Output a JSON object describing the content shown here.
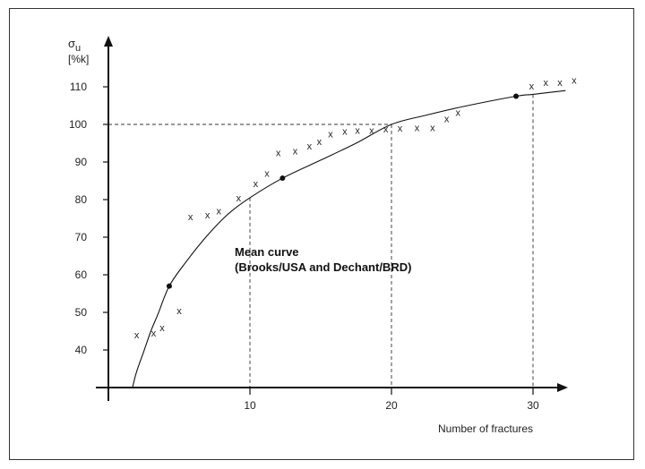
{
  "chart_data": {
    "type": "scatter",
    "ylabel_symbol": "σ",
    "ylabel_subscript": "u",
    "ylabel_unit": "[%k]",
    "xlabel": "Number of fractures",
    "xlim": [
      0,
      32.5
    ],
    "ylim": [
      30,
      120
    ],
    "x_ticks": [
      10,
      20,
      30
    ],
    "y_ticks": [
      40,
      50,
      60,
      70,
      80,
      90,
      100,
      110
    ],
    "grid": false,
    "annotation": {
      "line1": "Mean curve",
      "line2": "(Brooks/USA and Dechant/BRD)"
    },
    "scatter_marker": "x",
    "scatter": [
      {
        "x": 2.0,
        "y": 44
      },
      {
        "x": 3.2,
        "y": 44.5
      },
      {
        "x": 3.8,
        "y": 46
      },
      {
        "x": 5.0,
        "y": 50.5
      },
      {
        "x": 5.8,
        "y": 75.5
      },
      {
        "x": 7.0,
        "y": 76
      },
      {
        "x": 7.8,
        "y": 77
      },
      {
        "x": 9.2,
        "y": 80.5
      },
      {
        "x": 10.4,
        "y": 84.3
      },
      {
        "x": 11.2,
        "y": 87
      },
      {
        "x": 12.0,
        "y": 92.5
      },
      {
        "x": 13.2,
        "y": 93
      },
      {
        "x": 14.2,
        "y": 94.3
      },
      {
        "x": 14.9,
        "y": 95.5
      },
      {
        "x": 15.7,
        "y": 97.5
      },
      {
        "x": 16.7,
        "y": 98.2
      },
      {
        "x": 17.6,
        "y": 98.5
      },
      {
        "x": 18.6,
        "y": 98.5
      },
      {
        "x": 19.6,
        "y": 98.8
      },
      {
        "x": 20.6,
        "y": 99
      },
      {
        "x": 21.8,
        "y": 99.2
      },
      {
        "x": 22.9,
        "y": 99.2
      },
      {
        "x": 23.9,
        "y": 101.5
      },
      {
        "x": 24.7,
        "y": 103.2
      },
      {
        "x": 29.9,
        "y": 110.2
      },
      {
        "x": 30.9,
        "y": 111.2
      },
      {
        "x": 31.9,
        "y": 111.2
      },
      {
        "x": 32.9,
        "y": 111.8
      }
    ],
    "curve_marker_points": [
      {
        "x": 4.3,
        "y": 57
      },
      {
        "x": 12.3,
        "y": 85.7
      },
      {
        "x": 28.8,
        "y": 107.5
      }
    ],
    "mean_curve": [
      {
        "x": 1.7,
        "y": 30
      },
      {
        "x": 2.0,
        "y": 34.3
      },
      {
        "x": 2.5,
        "y": 39.6
      },
      {
        "x": 3.0,
        "y": 45
      },
      {
        "x": 3.5,
        "y": 49.5
      },
      {
        "x": 4.3,
        "y": 57
      },
      {
        "x": 5.5,
        "y": 63.5
      },
      {
        "x": 7.0,
        "y": 70.5
      },
      {
        "x": 8.5,
        "y": 76.3
      },
      {
        "x": 10.0,
        "y": 80.5
      },
      {
        "x": 12.3,
        "y": 85.7
      },
      {
        "x": 15.0,
        "y": 90.5
      },
      {
        "x": 17.5,
        "y": 95
      },
      {
        "x": 20.0,
        "y": 100
      },
      {
        "x": 22.5,
        "y": 102.5
      },
      {
        "x": 25.0,
        "y": 104.7
      },
      {
        "x": 28.8,
        "y": 107.5
      },
      {
        "x": 30.0,
        "y": 108
      },
      {
        "x": 32.3,
        "y": 109
      }
    ],
    "reference_lines": [
      {
        "x": 10,
        "y": 80.5
      },
      {
        "x": 20,
        "y": 100
      },
      {
        "x": 30,
        "y": 108
      }
    ]
  }
}
